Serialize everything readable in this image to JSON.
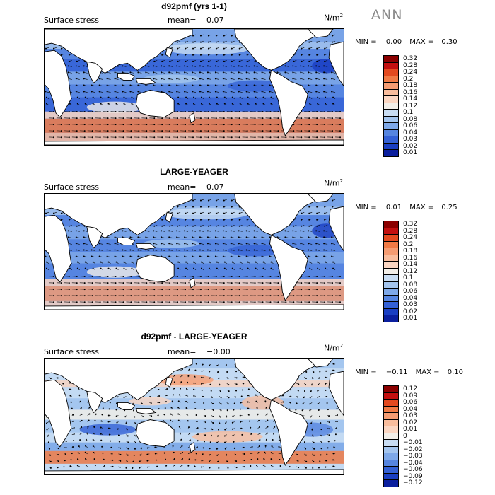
{
  "season": "ANN",
  "panels": [
    {
      "title": "d92pmf (yrs 1-1)",
      "field": "Surface stress",
      "mean_label": "mean=",
      "mean_value": "0.07",
      "units_base": "N/m",
      "units_exp": "2",
      "min_label": "MIN =",
      "min_value": "0.00",
      "max_label": "MAX =",
      "max_value": "0.30",
      "contour_levels": [
        "0.32",
        "0.28",
        "0.24",
        "0.2",
        "0.18",
        "0.16",
        "0.14",
        "0.12",
        "0.1",
        "0.08",
        "0.06",
        "0.04",
        "0.03",
        "0.02",
        "0.01"
      ],
      "palette": [
        "#8b0000",
        "#c21010",
        "#e34a20",
        "#f07a45",
        "#f59c72",
        "#f9bd9d",
        "#fbd6c2",
        "#f2eee8",
        "#c9ddf3",
        "#a4c5ee",
        "#7ea8e8",
        "#5685e0",
        "#3461d6",
        "#1a3fc3",
        "#0b1f9e"
      ]
    },
    {
      "title": "LARGE-YEAGER",
      "field": "Surface stress",
      "mean_label": "mean=",
      "mean_value": "0.07",
      "units_base": "N/m",
      "units_exp": "2",
      "min_label": "MIN =",
      "min_value": "0.01",
      "max_label": "MAX =",
      "max_value": "0.25",
      "contour_levels": [
        "0.32",
        "0.28",
        "0.24",
        "0.2",
        "0.18",
        "0.16",
        "0.14",
        "0.12",
        "0.1",
        "0.08",
        "0.06",
        "0.04",
        "0.03",
        "0.02",
        "0.01"
      ],
      "palette": [
        "#8b0000",
        "#c21010",
        "#e34a20",
        "#f07a45",
        "#f59c72",
        "#f9bd9d",
        "#fbd6c2",
        "#f2eee8",
        "#c9ddf3",
        "#a4c5ee",
        "#7ea8e8",
        "#5685e0",
        "#3461d6",
        "#1a3fc3",
        "#0b1f9e"
      ]
    },
    {
      "title": "d92pmf - LARGE-YEAGER",
      "field": "Surface stress",
      "mean_label": "mean=",
      "mean_value": "−0.00",
      "units_base": "N/m",
      "units_exp": "2",
      "min_label": "MIN =",
      "min_value": "−0.11",
      "max_label": "MAX =",
      "max_value": "0.10",
      "contour_levels": [
        "0.12",
        "0.09",
        "0.06",
        "0.04",
        "0.03",
        "0.02",
        "0.01",
        "0",
        "−0.01",
        "−0.02",
        "−0.03",
        "−0.04",
        "−0.06",
        "−0.09",
        "−0.12"
      ],
      "palette": [
        "#8b0000",
        "#c21010",
        "#e34a20",
        "#f07a45",
        "#f59c72",
        "#f9bd9d",
        "#fbd6c2",
        "#f2eee8",
        "#c9ddf3",
        "#a4c5ee",
        "#7ea8e8",
        "#5685e0",
        "#3461d6",
        "#1a3fc3",
        "#0b1f9e"
      ]
    }
  ]
}
